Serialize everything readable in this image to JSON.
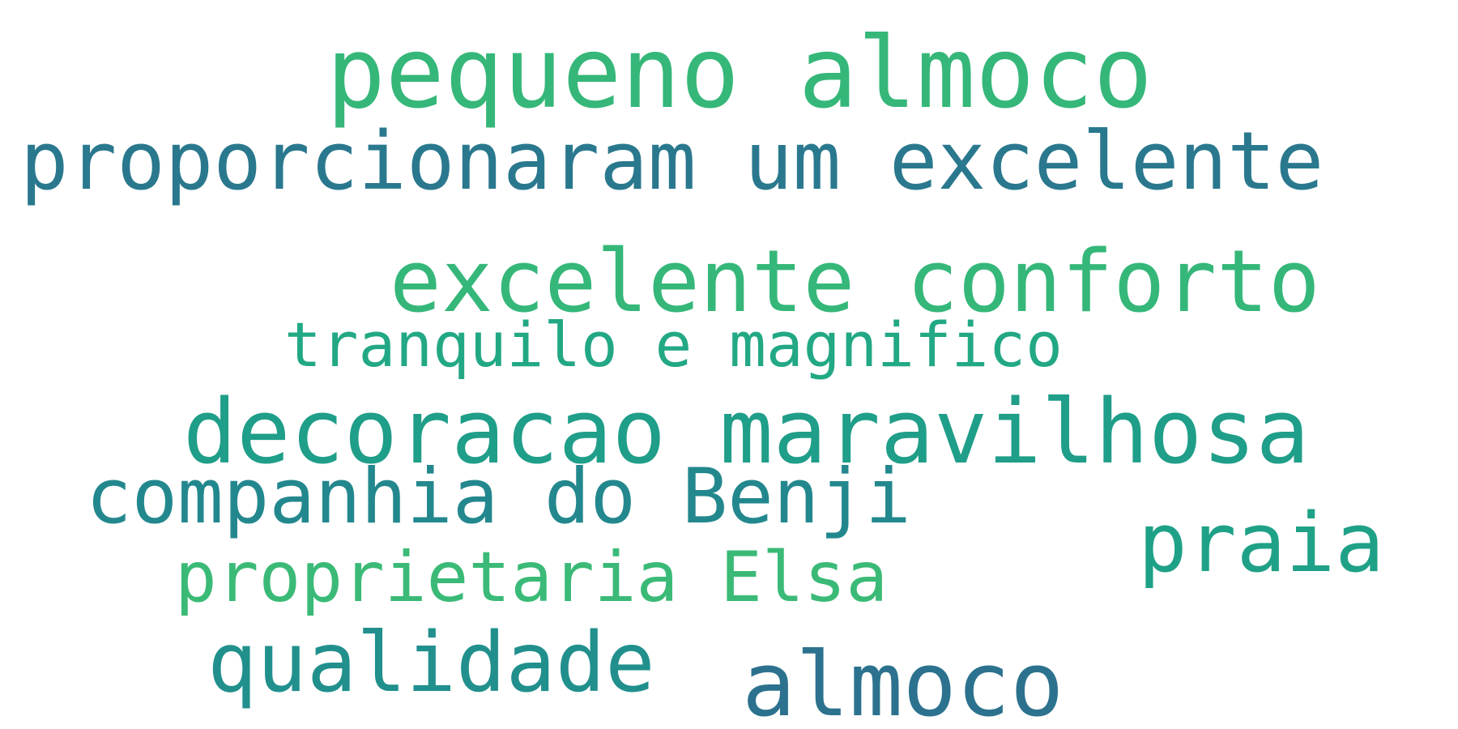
{
  "words": [
    {
      "text": "pequeno almoco",
      "color": "#35b779"
    },
    {
      "text": "proporcionaram um excelente",
      "color": "#2a788e"
    },
    {
      "text": "excelente conforto",
      "color": "#35b779"
    },
    {
      "text": "tranquilo e magnifico",
      "color": "#22a884"
    },
    {
      "text": "decoracao maravilhosa",
      "color": "#1f9e89"
    },
    {
      "text": "companhia do Benji",
      "color": "#23888e"
    },
    {
      "text": "praia",
      "color": "#1fa187"
    },
    {
      "text": "proprietaria Elsa",
      "color": "#3aba76"
    },
    {
      "text": "qualidade",
      "color": "#21908d"
    },
    {
      "text": "almoco",
      "color": "#2c728e"
    }
  ]
}
